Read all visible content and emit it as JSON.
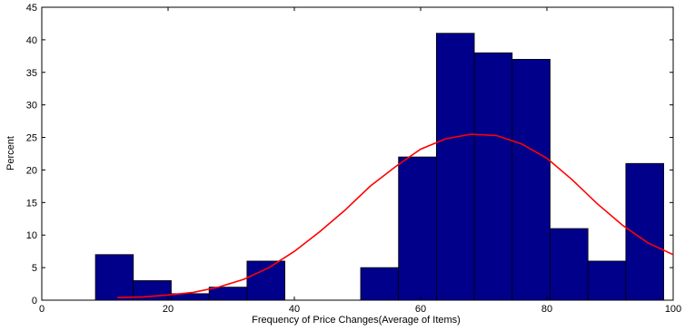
{
  "chart_data": {
    "type": "bar",
    "title": "",
    "xlabel": "Frequency of Price Changes(Average of Items)",
    "ylabel": "Percent",
    "xlim": [
      0,
      100
    ],
    "ylim": [
      0,
      45
    ],
    "xticks": [
      0,
      20,
      40,
      60,
      80,
      100
    ],
    "yticks": [
      0,
      5,
      10,
      15,
      20,
      25,
      30,
      35,
      40,
      45
    ],
    "grid": false,
    "legend": "none",
    "bar_color": "#00008B",
    "bar_edge_color": "#000000",
    "curve_color": "#FF0000",
    "histogram": {
      "bin_edges": [
        8.5,
        14.5,
        20.5,
        26.5,
        32.5,
        38.5,
        44.5,
        50.5,
        56.5,
        62.5,
        68.5,
        74.5,
        80.5,
        86.5,
        92.5,
        98.5
      ],
      "values": [
        7,
        3,
        1,
        2,
        6,
        0,
        0,
        5,
        22,
        41,
        38,
        37,
        11,
        6,
        21
      ]
    },
    "fit_curve": {
      "x": [
        12,
        16,
        20,
        24,
        28,
        32,
        36,
        40,
        44,
        48,
        52,
        56,
        60,
        64,
        68,
        72,
        76,
        80,
        84,
        88,
        92,
        96,
        100
      ],
      "y": [
        0.4,
        0.5,
        0.8,
        1.2,
        2.0,
        3.2,
        5.0,
        7.5,
        10.5,
        13.8,
        17.5,
        20.5,
        23.2,
        24.8,
        25.5,
        25.3,
        24.0,
        21.8,
        18.5,
        14.8,
        11.5,
        8.8,
        7.0
      ]
    }
  }
}
